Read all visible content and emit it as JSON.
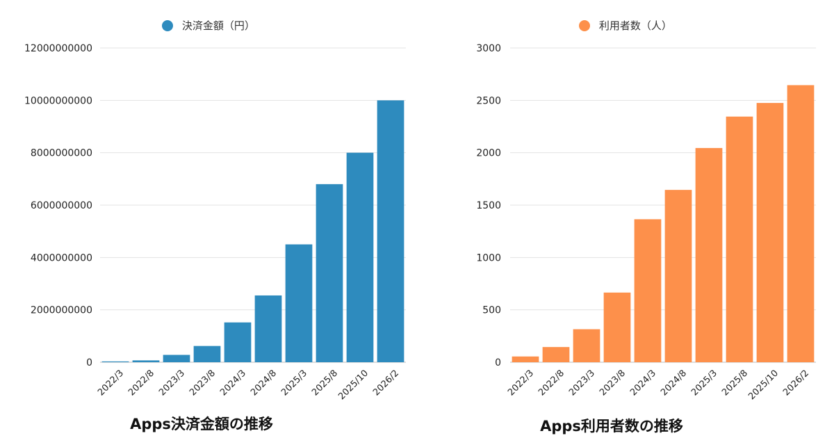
{
  "chart_data": [
    {
      "type": "bar",
      "title": "Apps決済金額の推移",
      "legend": "決済金額（円）",
      "legend_position": "top",
      "color": "#2e8bbe",
      "grid": true,
      "categories": [
        "2022/3",
        "2022/8",
        "2023/3",
        "2023/8",
        "2024/3",
        "2024/8",
        "2025/3",
        "2025/8",
        "2025/10",
        "2026/2"
      ],
      "values": [
        30000000,
        70000000,
        280000000,
        620000000,
        1520000000,
        2550000000,
        4500000000,
        6800000000,
        8000000000,
        10000000000
      ],
      "ylim": [
        0,
        12000000000
      ],
      "yticks": [
        "0",
        "2000000000",
        "4000000000",
        "6000000000",
        "8000000000",
        "10000000000",
        "12000000000"
      ]
    },
    {
      "type": "bar",
      "title": "Apps利用者数の推移",
      "legend": "利用者数（人）",
      "legend_position": "top",
      "color": "#fd904b",
      "grid": true,
      "categories": [
        "2022/3",
        "2022/8",
        "2023/3",
        "2023/8",
        "2024/3",
        "2024/8",
        "2025/3",
        "2025/8",
        "2025/10",
        "2026/2"
      ],
      "values": [
        55,
        145,
        315,
        665,
        1365,
        1645,
        2045,
        2345,
        2475,
        2645
      ],
      "ylim": [
        0,
        3000
      ],
      "yticks": [
        "0",
        "500",
        "1000",
        "1500",
        "2000",
        "2500",
        "3000"
      ]
    }
  ]
}
